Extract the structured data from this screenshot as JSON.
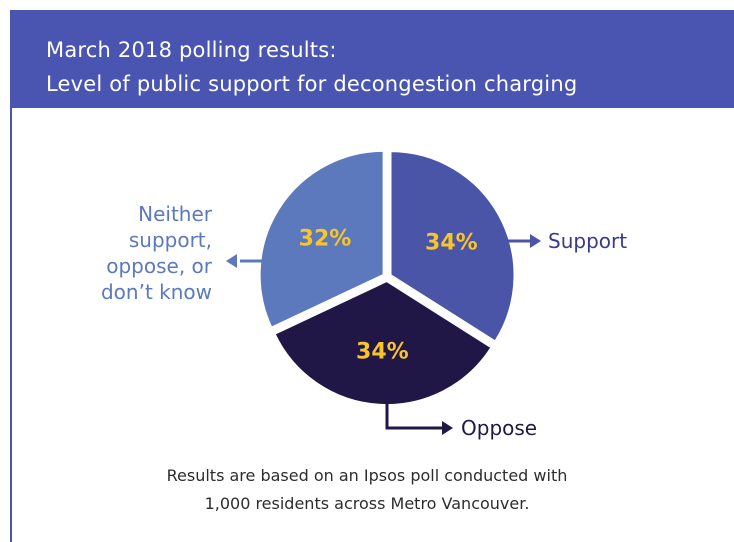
{
  "header": {
    "title_line1": "March 2018 polling results:",
    "title_line2": "Level of public support for decongestion charging"
  },
  "colors": {
    "header_bg": "#4a55b1",
    "support": "#4a55a8",
    "neither": "#5c79bd",
    "oppose": "#211747",
    "percent_text": "#f7c52b",
    "neither_label": "#5c79bd",
    "support_label": "#3a3a8a",
    "oppose_label": "#211747",
    "arrow_support": "#4a55a8",
    "arrow_neither": "#5c79bd",
    "arrow_oppose": "#211747"
  },
  "chart_data": {
    "type": "pie",
    "slices": [
      {
        "label": "Support",
        "value": 34,
        "value_label": "34%"
      },
      {
        "label": "Oppose",
        "value": 34,
        "value_label": "34%"
      },
      {
        "label_lines": [
          "Neither",
          "support,",
          "oppose, or",
          "don’t know"
        ],
        "value": 32,
        "value_label": "32%"
      }
    ]
  },
  "footnote": {
    "line1": "Results are based on an Ipsos poll conducted with",
    "line2": "1,000 residents across Metro Vancouver."
  }
}
